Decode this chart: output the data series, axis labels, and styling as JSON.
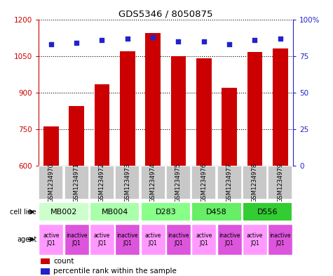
{
  "title": "GDS5346 / 8050875",
  "samples": [
    "GSM1234970",
    "GSM1234971",
    "GSM1234972",
    "GSM1234973",
    "GSM1234974",
    "GSM1234975",
    "GSM1234976",
    "GSM1234977",
    "GSM1234978",
    "GSM1234979"
  ],
  "counts": [
    760,
    845,
    935,
    1070,
    1145,
    1050,
    1040,
    920,
    1065,
    1080
  ],
  "percentiles": [
    83,
    84,
    86,
    87,
    88,
    85,
    85,
    83,
    86,
    87
  ],
  "ylim_left": [
    600,
    1200
  ],
  "ylim_right": [
    0,
    100
  ],
  "yticks_left": [
    600,
    750,
    900,
    1050,
    1200
  ],
  "yticks_right": [
    0,
    25,
    50,
    75,
    100
  ],
  "bar_color": "#cc0000",
  "dot_color": "#2222cc",
  "cell_lines": [
    {
      "label": "MB002",
      "cols": [
        0,
        1
      ],
      "color": "#ccffcc"
    },
    {
      "label": "MB004",
      "cols": [
        2,
        3
      ],
      "color": "#aaffaa"
    },
    {
      "label": "D283",
      "cols": [
        4,
        5
      ],
      "color": "#88ff88"
    },
    {
      "label": "D458",
      "cols": [
        6,
        7
      ],
      "color": "#66ee66"
    },
    {
      "label": "D556",
      "cols": [
        8,
        9
      ],
      "color": "#33cc33"
    }
  ],
  "agents": [
    {
      "label": "active\nJQ1",
      "color": "#ff99ff"
    },
    {
      "label": "inactive\nJQ1",
      "color": "#dd55dd"
    },
    {
      "label": "active\nJQ1",
      "color": "#ff99ff"
    },
    {
      "label": "inactive\nJQ1",
      "color": "#dd55dd"
    },
    {
      "label": "active\nJQ1",
      "color": "#ff99ff"
    },
    {
      "label": "inactive\nJQ1",
      "color": "#dd55dd"
    },
    {
      "label": "active\nJQ1",
      "color": "#ff99ff"
    },
    {
      "label": "inactive\nJQ1",
      "color": "#dd55dd"
    },
    {
      "label": "active\nJQ1",
      "color": "#ff99ff"
    },
    {
      "label": "inactive\nJQ1",
      "color": "#dd55dd"
    }
  ],
  "cell_line_label": "cell line",
  "agent_label": "agent",
  "legend_count_label": "count",
  "legend_percentile_label": "percentile rank within the sample",
  "grid_color": "#888888",
  "tick_color_left": "#cc0000",
  "tick_color_right": "#2222cc",
  "background_color": "#ffffff",
  "sample_bg_color": "#c8c8c8"
}
